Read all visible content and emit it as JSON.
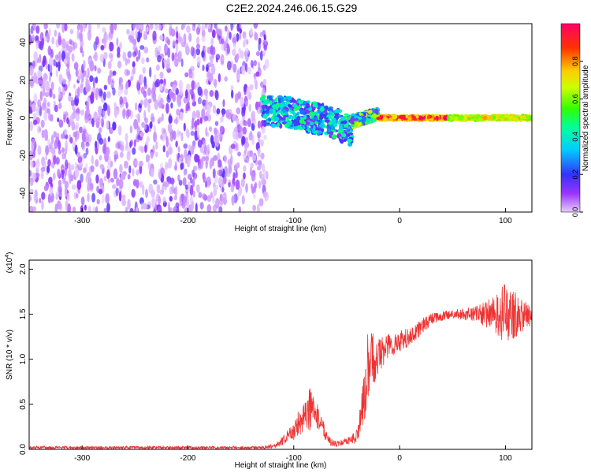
{
  "title": "C2E2.2024.246.06.15.G29",
  "colorbar": {
    "label": "Normalized spectral amplitude",
    "ticks": [
      0.0,
      0.2,
      0.4,
      0.6,
      0.8
    ],
    "tick_labels": [
      "0.0",
      "0.2",
      "0.4",
      "0.6",
      "0.8"
    ],
    "range": [
      0,
      1
    ]
  },
  "chart_data": [
    {
      "type": "heatmap",
      "title": "C2E2.2024.246.06.15.G29",
      "xlabel": "Height of straight line (km)",
      "ylabel": "Frequency (Hz)",
      "xlim": [
        -350,
        125
      ],
      "ylim": [
        -50,
        50
      ],
      "xticks": [
        -300,
        -200,
        -100,
        0,
        100
      ],
      "xtick_labels": [
        "-300",
        "-200",
        "-100",
        "0",
        "100"
      ],
      "yticks": [
        -40,
        -20,
        0,
        20,
        40
      ],
      "ytick_labels": [
        "-40",
        "-20",
        "0",
        "20",
        "40"
      ],
      "regions": [
        {
          "name": "noise",
          "x_range": [
            -350,
            -125
          ],
          "freq_range": [
            -50,
            50
          ],
          "amplitude": 0.1
        },
        {
          "name": "scattered",
          "x_range": [
            -130,
            -45
          ],
          "freq_center": [
            4,
            3,
            1,
            -2,
            -7
          ],
          "freq_spread": 8,
          "amplitude": 0.4
        },
        {
          "name": "transition",
          "x_range": [
            -45,
            -20
          ],
          "freq_center": [
            -2,
            0,
            2
          ],
          "freq_spread": 3,
          "amplitude": 0.6
        },
        {
          "name": "signal",
          "x_range": [
            -20,
            125
          ],
          "freq_center": 0,
          "freq_spread": 1.5,
          "amplitude": 1.0
        }
      ]
    },
    {
      "type": "line",
      "title": "",
      "xlabel": "Height of straight line (km)",
      "ylabel": "SNR (10 * v/v)",
      "multiplier_label": "(x10",
      "multiplier_exp": "4",
      "multiplier_close": ")",
      "xlim": [
        -350,
        125
      ],
      "ylim": [
        0,
        2.1
      ],
      "xticks": [
        -300,
        -200,
        -100,
        0,
        100
      ],
      "xtick_labels": [
        "-300",
        "-200",
        "-100",
        "0",
        "100"
      ],
      "yticks": [
        0.0,
        0.5,
        1.0,
        1.5,
        2.0
      ],
      "ytick_labels": [
        "0.0",
        "0.5",
        "1.0",
        "1.5",
        "2.0"
      ],
      "series": [
        {
          "name": "SNR",
          "color": "#ee3333",
          "envelope": {
            "x": [
              -350,
              -130,
              -115,
              -100,
              -90,
              -85,
              -80,
              -75,
              -70,
              -65,
              -60,
              -50,
              -40,
              -33,
              -30,
              -25,
              -20,
              -10,
              0,
              10,
              20,
              30,
              50,
              70,
              90,
              100,
              110,
              125
            ],
            "mean": [
              0.02,
              0.02,
              0.05,
              0.2,
              0.4,
              0.45,
              0.4,
              0.32,
              0.18,
              0.08,
              0.06,
              0.08,
              0.15,
              0.6,
              0.9,
              1.0,
              1.05,
              1.15,
              1.2,
              1.25,
              1.35,
              1.45,
              1.5,
              1.5,
              1.5,
              1.5,
              1.5,
              1.48
            ],
            "amp": [
              0.015,
              0.015,
              0.03,
              0.1,
              0.2,
              0.25,
              0.15,
              0.12,
              0.08,
              0.04,
              0.03,
              0.04,
              0.08,
              0.3,
              0.4,
              0.3,
              0.2,
              0.15,
              0.12,
              0.1,
              0.1,
              0.06,
              0.05,
              0.08,
              0.2,
              0.35,
              0.25,
              0.1
            ]
          }
        }
      ]
    }
  ]
}
